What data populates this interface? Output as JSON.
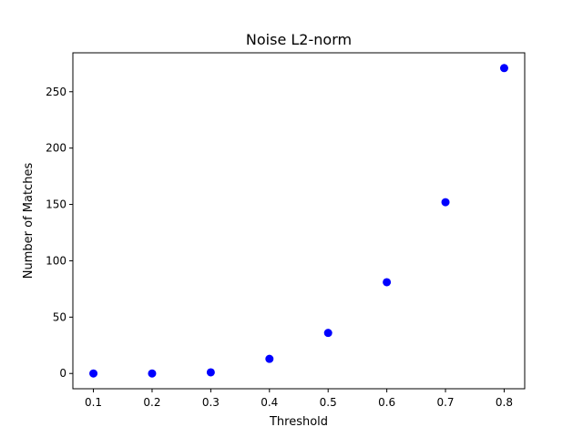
{
  "chart_data": {
    "type": "scatter",
    "title": "Noise L2-norm",
    "xlabel": "Threshold",
    "ylabel": "Number of Matches",
    "x": [
      0.1,
      0.2,
      0.3,
      0.4,
      0.5,
      0.6,
      0.7,
      0.8
    ],
    "y": [
      0,
      0,
      1,
      13,
      36,
      81,
      152,
      271
    ],
    "xlim": [
      0.065,
      0.835
    ],
    "ylim": [
      -13.55,
      284.55
    ],
    "xticks": [
      0.1,
      0.2,
      0.3,
      0.4,
      0.5,
      0.6,
      0.7,
      0.8
    ],
    "xtick_labels": [
      "0.1",
      "0.2",
      "0.3",
      "0.4",
      "0.5",
      "0.6",
      "0.7",
      "0.8"
    ],
    "yticks": [
      0,
      50,
      100,
      150,
      200,
      250
    ],
    "ytick_labels": [
      "0",
      "50",
      "100",
      "150",
      "200",
      "250"
    ],
    "marker_color": "#0000ff",
    "grid": false,
    "legend": "none"
  }
}
